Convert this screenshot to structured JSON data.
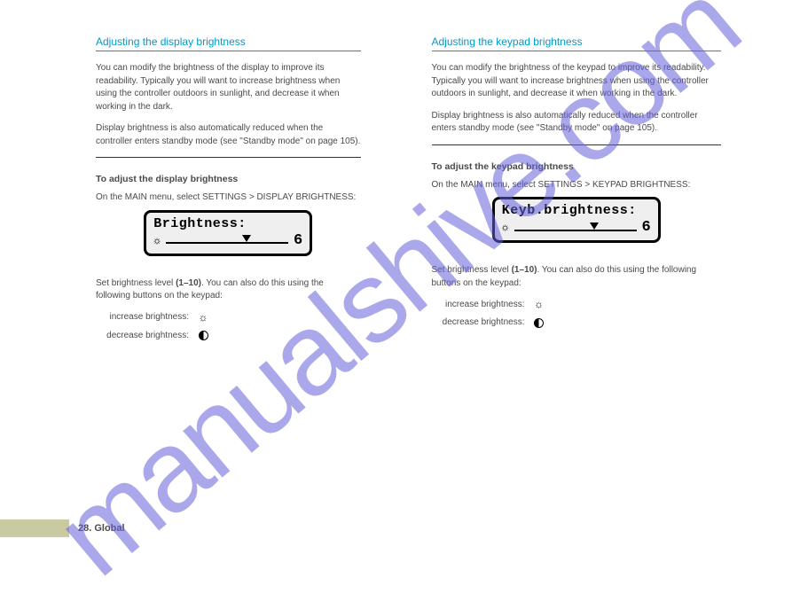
{
  "watermark": "manualshive.com",
  "left": {
    "section_title": "Adjusting the display brightness",
    "p1": "You can modify the brightness of the display to improve its readability. Typically you will want to increase brightness when using the controller outdoors in sunlight, and decrease it when working in the dark.",
    "p2": "Display brightness is also automatically reduced when the controller enters standby mode (see \"Standby mode\" on page 105).",
    "subhead": "To adjust the display brightness",
    "step1": "On the MAIN menu, select SETTINGS > DISPLAY BRIGHTNESS:",
    "lcd_title": "Brightness:",
    "lcd_value": "6",
    "marker_pct": 62,
    "step2_lead": "Set brightness level ",
    "step2_range": "(1–10)",
    "step2_tail": ". You can also do this using the following buttons on the keypad:",
    "btn_inc_label": "increase brightness:",
    "btn_dec_label": "decrease brightness:",
    "page_num": "28. Global"
  },
  "right": {
    "section_title": "Adjusting the keypad brightness",
    "p1": "You can modify the brightness of the keypad to improve its readability. Typically you will want to increase brightness when using the controller outdoors in sunlight, and decrease it when working in the dark.",
    "p2": "Display brightness is also automatically reduced when the controller enters standby mode (see \"Standby mode\" on page 105).",
    "subhead": "To adjust the keypad brightness",
    "step1": "On the MAIN menu, select SETTINGS > KEYPAD BRIGHTNESS:",
    "lcd_title": "Keyb.brightness:",
    "lcd_value": "6",
    "marker_pct": 62,
    "step2_lead": "Set brightness level ",
    "step2_range": "(1–10)",
    "step2_tail": ". You can also do this using the following buttons on the keypad:",
    "btn_inc_label": "increase brightness:",
    "btn_dec_label": "decrease brightness:"
  }
}
